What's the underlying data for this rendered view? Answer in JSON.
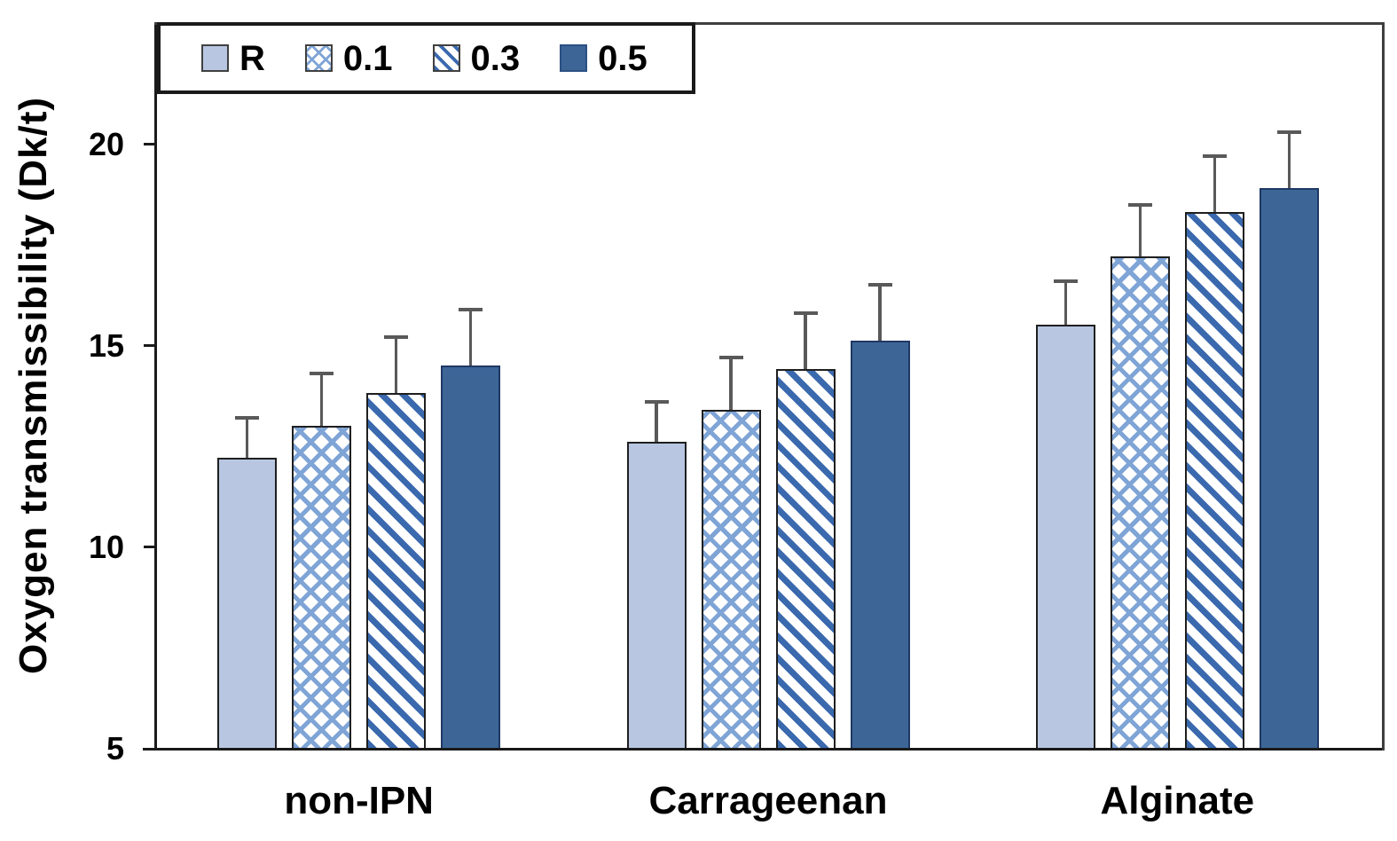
{
  "chart_data": {
    "type": "bar",
    "title": "",
    "xlabel": "",
    "ylabel": "Oxygen transmissibility (Dk/t)",
    "categories": [
      "non-IPN",
      "Carrageenan",
      "Alginate"
    ],
    "series": [
      {
        "name": "R",
        "style": "solid-light",
        "values": [
          12.2,
          12.6,
          15.5
        ],
        "errors_plus": [
          1.0,
          1.0,
          1.1
        ]
      },
      {
        "name": "0.1",
        "style": "crosshatch",
        "values": [
          13.0,
          13.4,
          17.2
        ],
        "errors_plus": [
          1.3,
          1.3,
          1.3
        ]
      },
      {
        "name": "0.3",
        "style": "diagonal",
        "values": [
          13.8,
          14.4,
          18.3
        ],
        "errors_plus": [
          1.4,
          1.4,
          1.4
        ]
      },
      {
        "name": "0.5",
        "style": "solid-dark",
        "values": [
          14.5,
          15.1,
          18.9
        ],
        "errors_plus": [
          1.4,
          1.4,
          1.4
        ]
      }
    ],
    "yticks": [
      5,
      10,
      15,
      20
    ],
    "ylim": [
      5,
      23
    ],
    "grid": false,
    "error_bars": "plus-only",
    "legend_position": "top-left",
    "colors": {
      "bar_light_blue": "#b8c6e2",
      "crosshatch_blue": "#7fa4d6",
      "stripe_blue": "#3a69ae",
      "bar_dark_blue": "#3d6697",
      "bar_border": "#1f1f1f",
      "dark_bar_border": "#1f3864",
      "error_bar_gray": "#595959",
      "frame_gray": "#3f3f3f",
      "text": "#000000",
      "background": "#ffffff"
    }
  }
}
